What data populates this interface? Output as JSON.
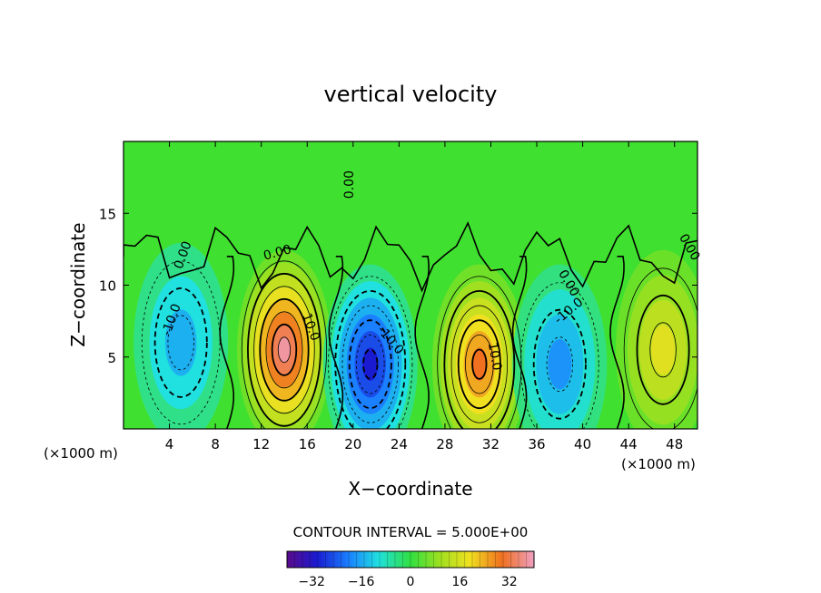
{
  "chart_data": {
    "type": "heatmap",
    "title": "vertical velocity",
    "xlabel": "X−coordinate",
    "ylabel": "Z−coordinate",
    "x_unit": "(×1000 m)",
    "xlim": [
      0,
      50
    ],
    "ylim": [
      0,
      20
    ],
    "xticks": [
      4,
      8,
      12,
      16,
      20,
      24,
      28,
      32,
      36,
      40,
      44,
      48
    ],
    "yticks": [
      5,
      10,
      15
    ],
    "contour_interval_text": "CONTOUR INTERVAL = 5.000E+00",
    "contour_interval": 5.0,
    "colorbar": {
      "min": -40,
      "max": 40,
      "ticks": [
        "−32",
        "−16",
        "0",
        "16",
        "32"
      ],
      "tick_values": [
        -32,
        -16,
        0,
        16,
        32
      ]
    },
    "contour_labels": [
      {
        "text": "0.00",
        "x": 5.5,
        "z": 12.0,
        "angle": -70
      },
      {
        "text": "0.00",
        "x": 13.5,
        "z": 12.0,
        "angle": -15
      },
      {
        "text": "0.00",
        "x": 20.0,
        "z": 17.0,
        "angle": -90
      },
      {
        "text": "0.00",
        "x": 38.5,
        "z": 10.0,
        "angle": 60
      },
      {
        "text": "0.00",
        "x": 49.0,
        "z": 12.5,
        "angle": 60
      },
      {
        "text": "10.0",
        "x": 16.0,
        "z": 7.0,
        "angle": 70
      },
      {
        "text": "10.0",
        "x": 32.0,
        "z": 5.0,
        "angle": 80
      },
      {
        "text": "-10.0",
        "x": 4.5,
        "z": 7.5,
        "angle": -70
      },
      {
        "text": "-10.0",
        "x": 23.0,
        "z": 6.0,
        "angle": 50
      },
      {
        "text": "-10.0",
        "x": 39.0,
        "z": 8.0,
        "angle": -40
      }
    ],
    "extrema": [
      {
        "x": 14.0,
        "z": 5.5,
        "value": 38,
        "sign": "updraft"
      },
      {
        "x": 31.0,
        "z": 4.5,
        "value": 30,
        "sign": "updraft"
      },
      {
        "x": 47.0,
        "z": 5.5,
        "value": 18,
        "sign": "updraft"
      },
      {
        "x": 21.5,
        "z": 4.5,
        "value": -30,
        "sign": "downdraft"
      },
      {
        "x": 38.0,
        "z": 4.5,
        "value": -18,
        "sign": "downdraft"
      },
      {
        "x": 5.0,
        "z": 6.0,
        "value": -15,
        "sign": "downdraft"
      }
    ]
  }
}
